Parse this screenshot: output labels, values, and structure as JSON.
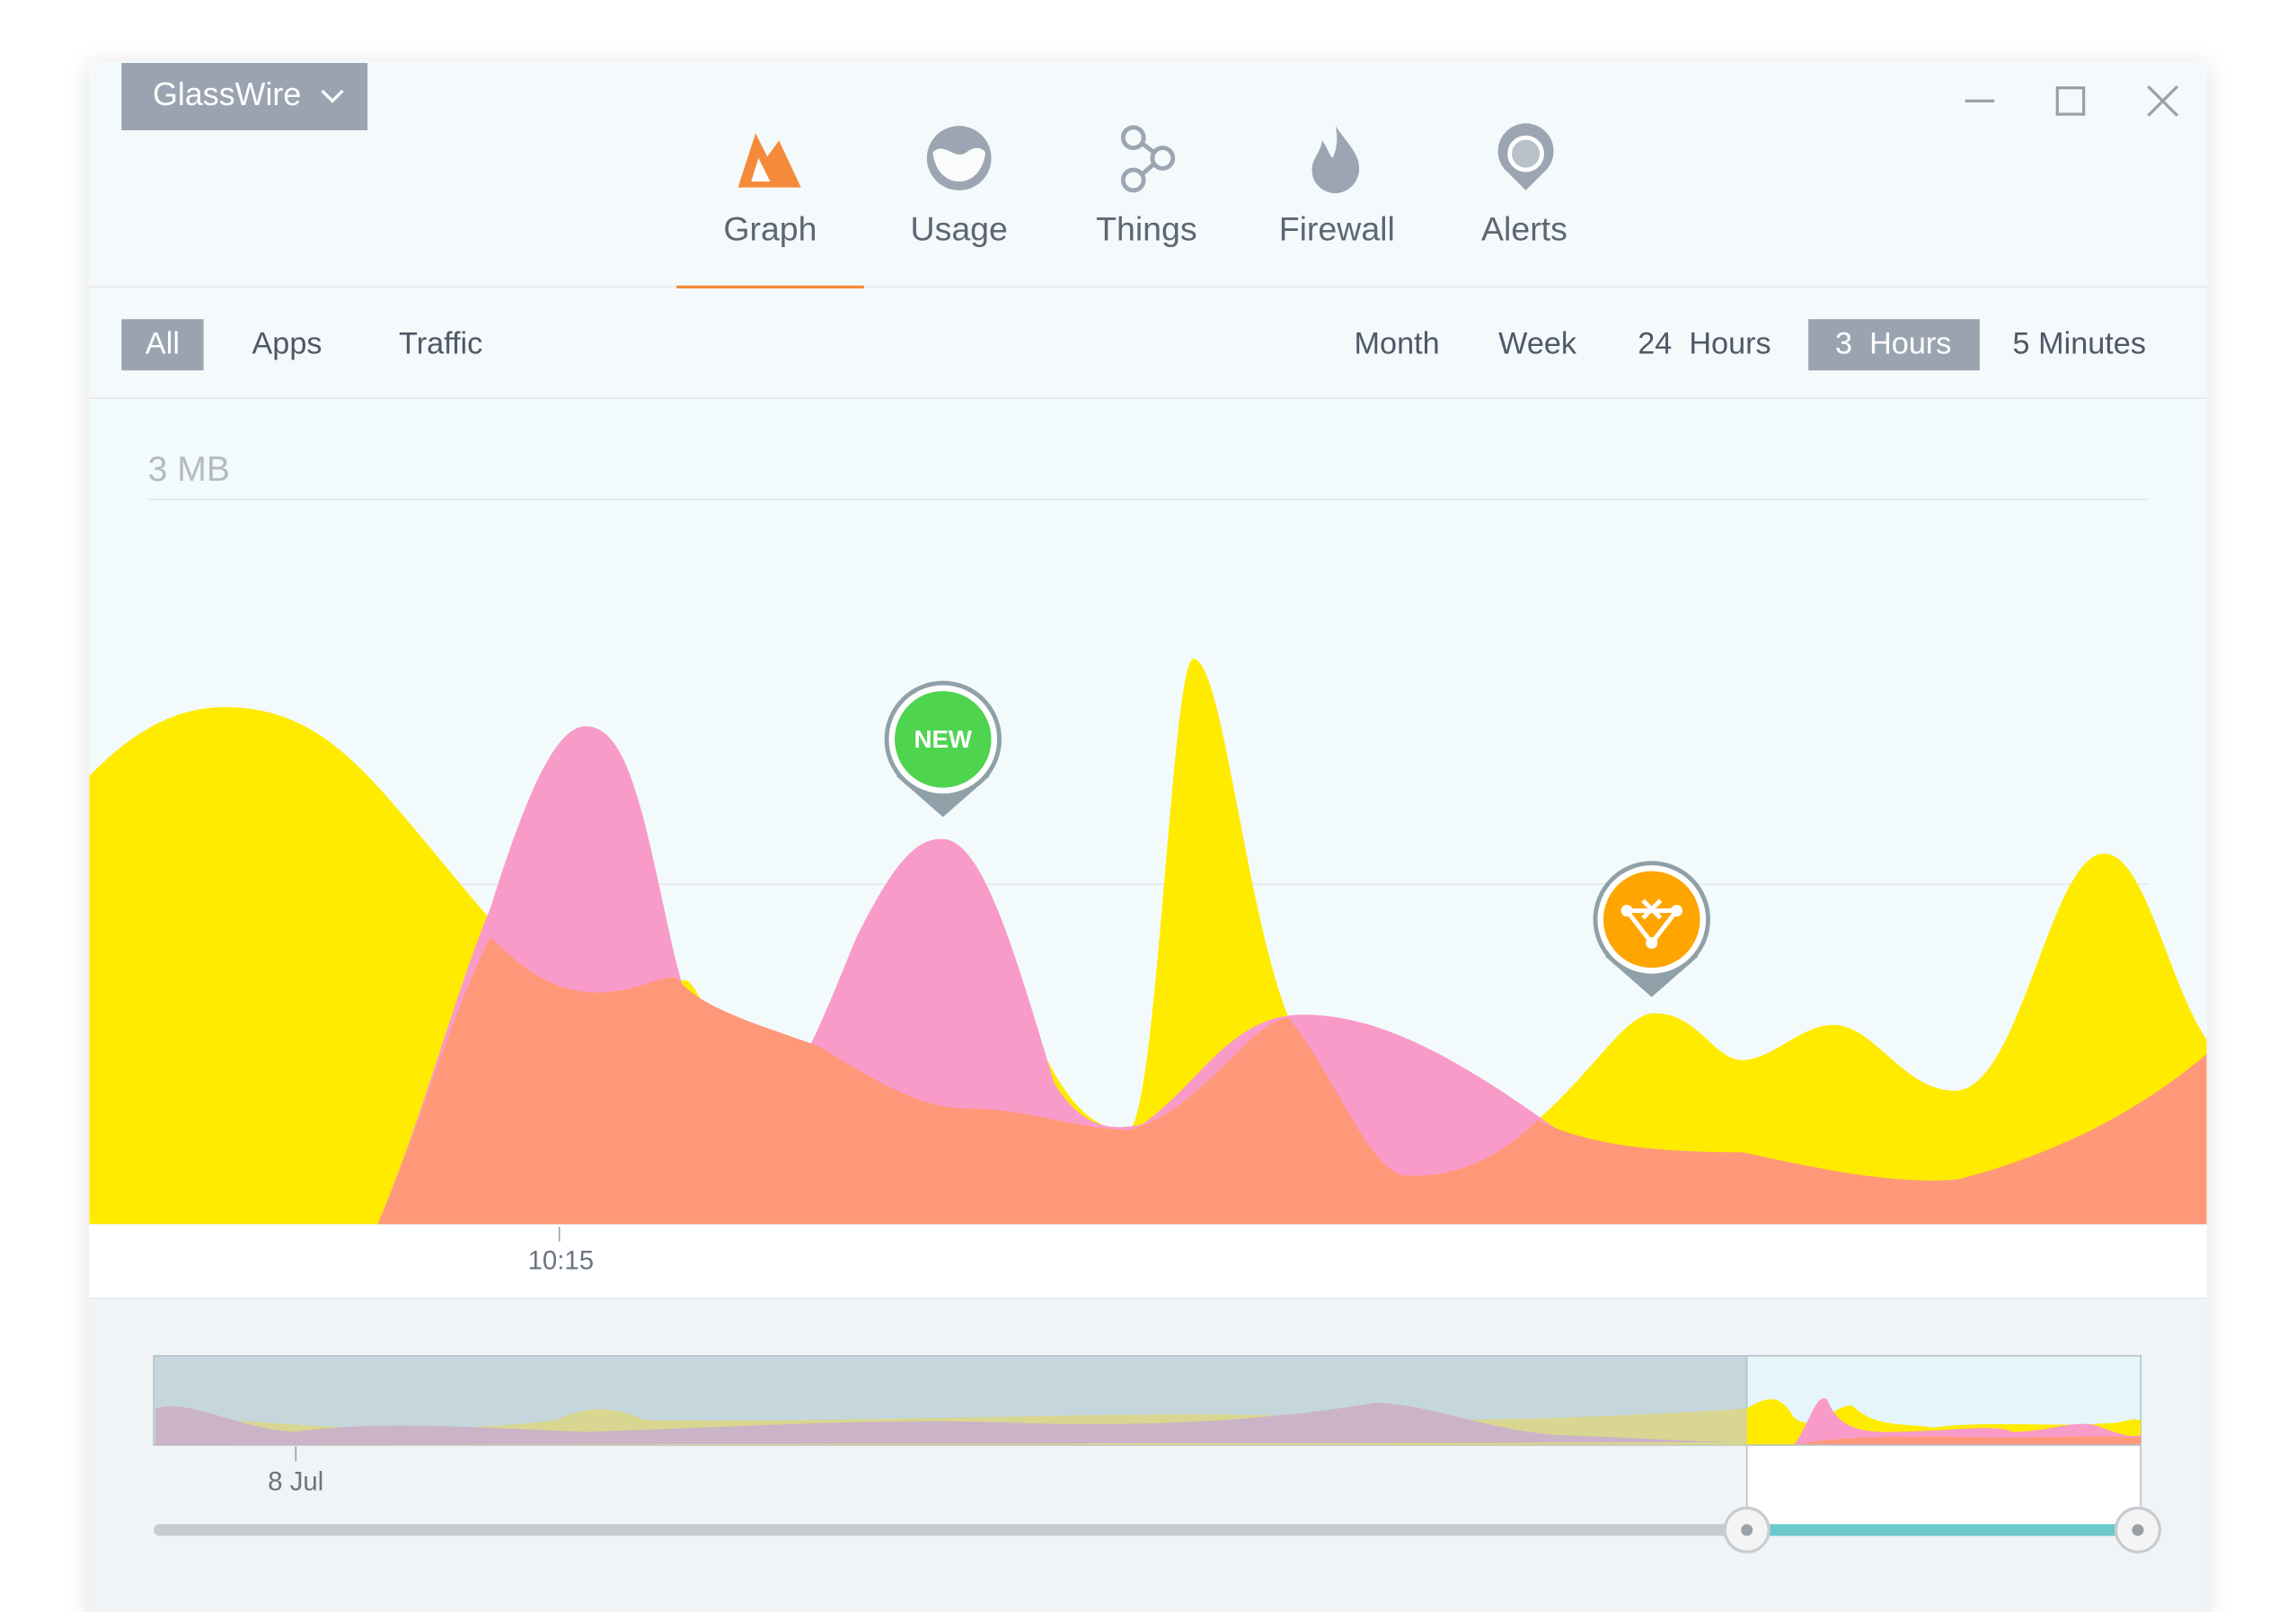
{
  "window": {
    "app_menu": "GlassWire"
  },
  "tabs": [
    "Graph",
    "Usage",
    "Things",
    "Firewall",
    "Alerts"
  ],
  "filters": [
    "All",
    "Apps",
    "Traffic"
  ],
  "time_ranges": [
    "Month",
    "Week",
    "24  Hours",
    "3  Hours",
    "5 Minutes"
  ],
  "graph": {
    "y_label": "3 MB",
    "x_label": "10:15",
    "badge": "NEW"
  },
  "timeline": {
    "date_label": "8 Jul"
  }
}
